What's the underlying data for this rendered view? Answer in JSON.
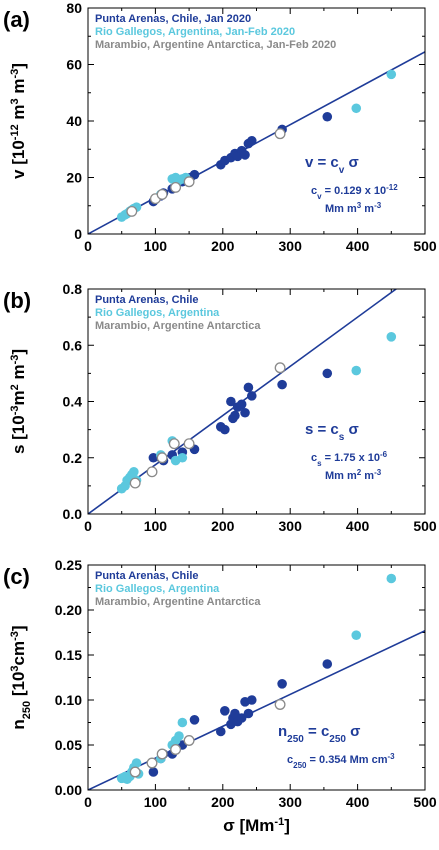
{
  "colors": {
    "punta": "#1f3c99",
    "rio": "#5bc8de",
    "marambio": "#8a8a8a",
    "fit": "#1f3c99"
  },
  "chart_data": [
    {
      "type": "scatter",
      "panel": "(a)",
      "ylabel": {
        "main": "v [10",
        "sup1": "-12",
        "mid1": " m",
        "sup2": "3",
        "mid2": " m",
        "sup3": "-3",
        "end": "]"
      },
      "xlabel": "",
      "xlim": [
        0,
        500
      ],
      "ylim": [
        0,
        80
      ],
      "xticks": [
        0,
        100,
        200,
        300,
        400,
        500
      ],
      "yticks": [
        0,
        20,
        40,
        60,
        80
      ],
      "legend": [
        "Punta Arenas, Chile, Jan 2020",
        "Rio Gallegos, Argentina, Jan-Feb 2020",
        "Marambio, Argentine Antarctica, Jan-Feb 2020"
      ],
      "equation": {
        "main_pre": "v = c",
        "main_sub": "v",
        "main_post": " σ",
        "coef_pre": "c",
        "coef_sub": "v",
        "coef_mid": " = 0.129 x 10",
        "coef_sup": "-12",
        "unit": "Mm m3 m-3",
        "unit_parts": {
          "a": "Mm m",
          "b": "3",
          "c": " m",
          "d": "-3"
        }
      },
      "fit": {
        "slope": 0.129
      },
      "series": [
        {
          "name": "Punta Arenas, Chile, Jan 2020",
          "color_key": "punta",
          "filled": true,
          "x": [
            97,
            108,
            112,
            125,
            140,
            152,
            158,
            197,
            203,
            212,
            218,
            222,
            228,
            233,
            238,
            243,
            288,
            355
          ],
          "y": [
            11.5,
            13.5,
            14.5,
            16,
            18.5,
            20,
            21,
            24.5,
            26,
            27,
            28.5,
            27.5,
            29.5,
            28,
            32,
            33,
            37,
            41.5
          ]
        },
        {
          "name": "Rio Gallegos, Argentina, Jan-Feb 2020",
          "color_key": "rio",
          "filled": true,
          "x": [
            50,
            55,
            58,
            62,
            65,
            68,
            72,
            108,
            125,
            130,
            135,
            140,
            145,
            398,
            450
          ],
          "y": [
            6,
            6.8,
            7.2,
            8,
            8.5,
            9,
            9.5,
            14,
            19.5,
            20,
            19,
            19.5,
            20,
            44.5,
            56.5
          ]
        },
        {
          "name": "Marambio, Argentine Antarctica, Jan-Feb 2020",
          "color_key": "marambio",
          "filled": false,
          "x": [
            65,
            100,
            110,
            130,
            150,
            285
          ],
          "y": [
            8,
            12.5,
            14,
            16.5,
            18.5,
            35.5
          ]
        }
      ]
    },
    {
      "type": "scatter",
      "panel": "(b)",
      "ylabel": {
        "main": "s [10",
        "sup1": "-3",
        "mid1": "m",
        "sup2": "2",
        "mid2": " m",
        "sup3": "-3",
        "end": "]"
      },
      "xlabel": "",
      "xlim": [
        0,
        500
      ],
      "ylim": [
        0,
        0.8
      ],
      "xticks": [
        0,
        100,
        200,
        300,
        400,
        500
      ],
      "yticks": [
        0.0,
        0.2,
        0.4,
        0.6,
        0.8
      ],
      "ytick_labels": [
        "0.0",
        "0.2",
        "0.4",
        "0.6",
        "0.8"
      ],
      "legend": [
        "Punta Arenas, Chile",
        "Rio Gallegos, Argentina",
        "Marambio, Argentine Antarctica"
      ],
      "equation": {
        "main_pre": "s = c",
        "main_sub": "s",
        "main_post": " σ",
        "coef_pre": "c",
        "coef_sub": "s",
        "coef_mid": " = 1.75 x 10",
        "coef_sup": "-6",
        "unit": "Mm m2 m-3",
        "unit_parts": {
          "a": "Mm m",
          "b": "2",
          "c": " m",
          "d": "-3"
        }
      },
      "fit": {
        "slope": 0.00175
      },
      "series": [
        {
          "name": "Punta Arenas, Chile",
          "color_key": "punta",
          "filled": true,
          "x": [
            97,
            108,
            112,
            125,
            140,
            158,
            197,
            203,
            212,
            215,
            218,
            222,
            228,
            233,
            238,
            243,
            288,
            355
          ],
          "y": [
            0.2,
            0.2,
            0.19,
            0.21,
            0.22,
            0.23,
            0.31,
            0.3,
            0.4,
            0.34,
            0.35,
            0.38,
            0.39,
            0.36,
            0.45,
            0.42,
            0.46,
            0.5
          ]
        },
        {
          "name": "Rio Gallegos, Argentina",
          "color_key": "rio",
          "filled": true,
          "x": [
            50,
            55,
            58,
            62,
            65,
            68,
            72,
            108,
            125,
            130,
            140,
            398,
            450
          ],
          "y": [
            0.09,
            0.1,
            0.12,
            0.13,
            0.14,
            0.15,
            0.12,
            0.21,
            0.26,
            0.19,
            0.2,
            0.51,
            0.63
          ]
        },
        {
          "name": "Marambio, Argentine Antarctica",
          "color_key": "marambio",
          "filled": false,
          "x": [
            70,
            95,
            110,
            128,
            150,
            285
          ],
          "y": [
            0.11,
            0.15,
            0.2,
            0.25,
            0.25,
            0.52
          ]
        }
      ]
    },
    {
      "type": "scatter",
      "panel": "(c)",
      "ylabel": {
        "main": "n",
        "sub": "250",
        "mid": " [10",
        "sup1": "3",
        "mid1": "cm",
        "sup2": "-3",
        "end": "]"
      },
      "xlabel": "σ [Mm",
      "xlabel_sup": "-1",
      "xlabel_end": "]",
      "xlim": [
        0,
        500
      ],
      "ylim": [
        0,
        0.25
      ],
      "xticks": [
        0,
        100,
        200,
        300,
        400,
        500
      ],
      "yticks": [
        0.0,
        0.05,
        0.1,
        0.15,
        0.2,
        0.25
      ],
      "ytick_labels": [
        "0.00",
        "0.05",
        "0.10",
        "0.15",
        "0.20",
        "0.25"
      ],
      "legend": [
        "Punta Arenas, Chile",
        "Rio Gallegos, Argentina",
        "Marambio, Argentine Antarctica"
      ],
      "equation": {
        "main_pre": "n",
        "main_sub": "250",
        "main_mid": " = c",
        "main_sub2": "250",
        "main_post": " σ",
        "coef_pre": "c",
        "coef_sub": "250",
        "coef_mid": " = 0.354 Mm cm",
        "coef_sup": "-3"
      },
      "fit": {
        "slope": 0.000354
      },
      "series": [
        {
          "name": "Punta Arenas, Chile",
          "color_key": "punta",
          "filled": true,
          "x": [
            97,
            108,
            112,
            125,
            140,
            158,
            197,
            203,
            212,
            215,
            218,
            222,
            228,
            233,
            238,
            243,
            288,
            355
          ],
          "y": [
            0.02,
            0.035,
            0.04,
            0.04,
            0.05,
            0.078,
            0.065,
            0.088,
            0.073,
            0.08,
            0.085,
            0.076,
            0.08,
            0.098,
            0.085,
            0.1,
            0.118,
            0.14
          ]
        },
        {
          "name": "Rio Gallegos, Argentina",
          "color_key": "rio",
          "filled": true,
          "x": [
            50,
            55,
            58,
            62,
            65,
            68,
            72,
            75,
            108,
            125,
            130,
            135,
            140,
            398,
            450
          ],
          "y": [
            0.013,
            0.015,
            0.012,
            0.015,
            0.02,
            0.025,
            0.03,
            0.018,
            0.035,
            0.05,
            0.055,
            0.06,
            0.075,
            0.172,
            0.235
          ]
        },
        {
          "name": "Marambio, Argentine Antarctica",
          "color_key": "marambio",
          "filled": false,
          "x": [
            70,
            95,
            110,
            130,
            150,
            285
          ],
          "y": [
            0.02,
            0.03,
            0.04,
            0.045,
            0.055,
            0.095
          ]
        }
      ]
    }
  ]
}
